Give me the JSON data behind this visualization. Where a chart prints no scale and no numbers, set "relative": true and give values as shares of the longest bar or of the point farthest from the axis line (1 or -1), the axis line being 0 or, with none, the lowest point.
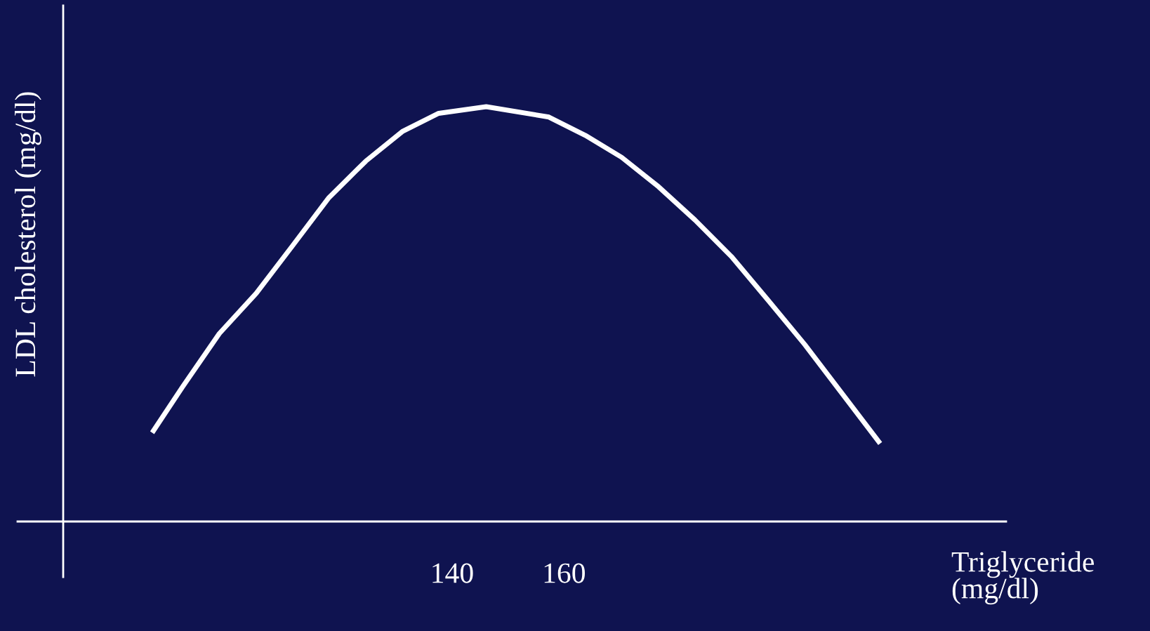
{
  "chart_data": {
    "type": "line",
    "relative": true,
    "xlabel": "Triglyceride\n(mg/dl)",
    "ylabel": "LDL cholesterol (mg/dl)",
    "xlim": [
      70.5,
      239
    ],
    "xticks": [
      140,
      160
    ],
    "grid": false,
    "marker": "none",
    "line_style": "solid",
    "series": [
      {
        "color": "#ffffff",
        "x": [
          86.4,
          91.9,
          98.4,
          105.0,
          111.5,
          118.0,
          124.6,
          131.1,
          137.6,
          146.1,
          157.3,
          163.8,
          170.3,
          176.9,
          183.4,
          189.9,
          196.5,
          203.0,
          209.5,
          216.5
        ],
        "values": [
          0.214,
          0.326,
          0.453,
          0.55,
          0.665,
          0.781,
          0.869,
          0.94,
          0.984,
          1.0,
          0.975,
          0.931,
          0.878,
          0.807,
          0.727,
          0.639,
          0.533,
          0.427,
          0.312,
          0.188
        ]
      }
    ]
  }
}
